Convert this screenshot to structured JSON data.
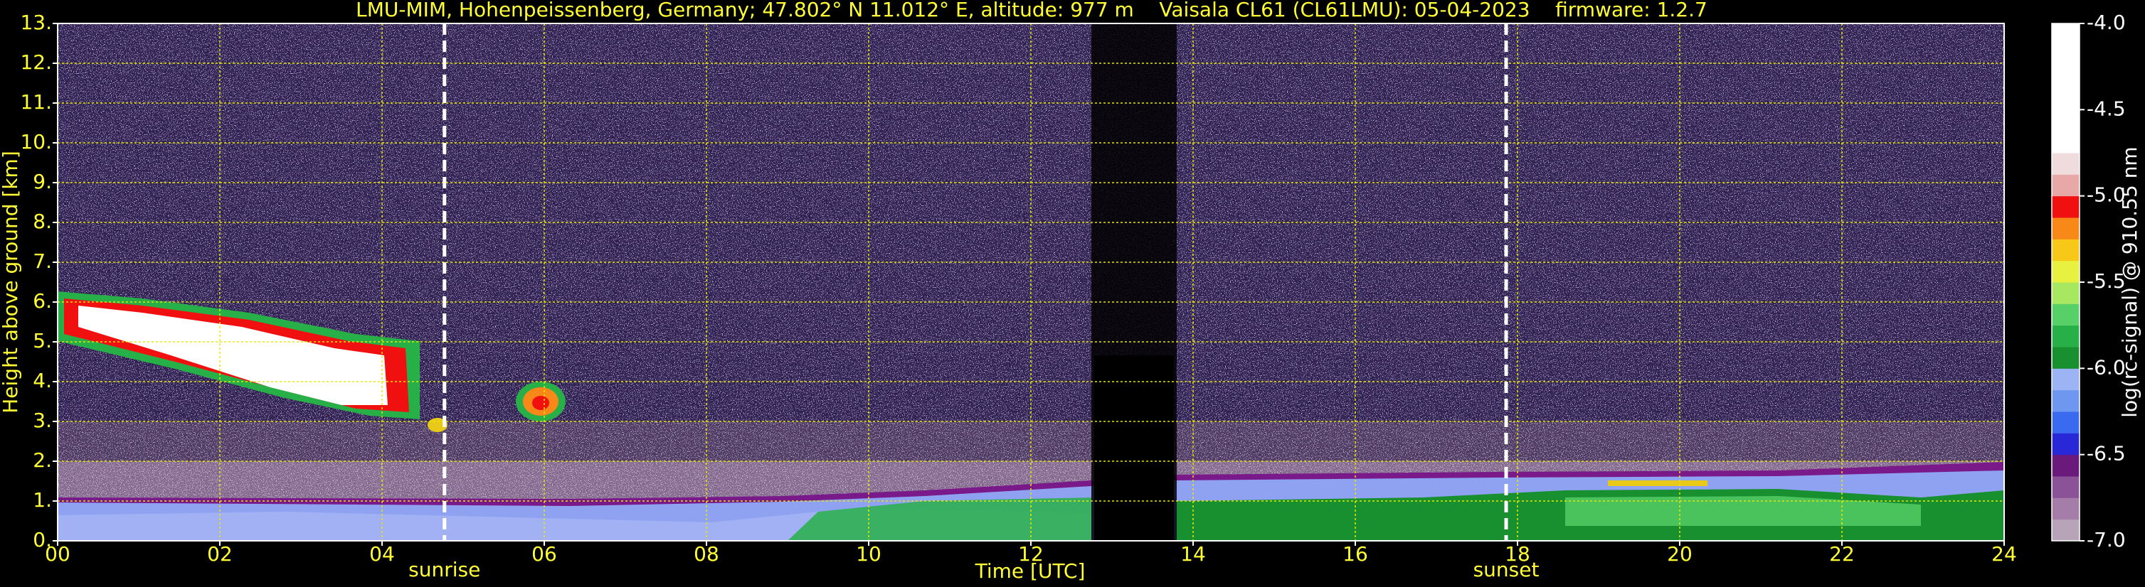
{
  "chart_data": {
    "type": "heatmap",
    "title": "LMU-MIM, Hohenpeissenberg, Germany; 47.802° N 11.012° E, altitude: 977 m    Vaisala CL61 (CL61LMU): 05-04-2023    firmware: 1.2.7",
    "x_label": "Time [UTC]",
    "y_label": "Height above ground [km]",
    "xlim": [
      0,
      24
    ],
    "xticks": [
      {
        "value": 0,
        "label": "00"
      },
      {
        "value": 2,
        "label": "02"
      },
      {
        "value": 4,
        "label": "04"
      },
      {
        "value": 6,
        "label": "06"
      },
      {
        "value": 8,
        "label": "08"
      },
      {
        "value": 10,
        "label": "10"
      },
      {
        "value": 12,
        "label": "12"
      },
      {
        "value": 14,
        "label": "14"
      },
      {
        "value": 16,
        "label": "16"
      },
      {
        "value": 18,
        "label": "18"
      },
      {
        "value": 20,
        "label": "20"
      },
      {
        "value": 22,
        "label": "22"
      },
      {
        "value": 24,
        "label": "24"
      }
    ],
    "ylim": [
      0,
      13
    ],
    "yticks": [
      {
        "value": 0,
        "label": "0."
      },
      {
        "value": 1,
        "label": "1."
      },
      {
        "value": 2,
        "label": "2."
      },
      {
        "value": 3,
        "label": "3."
      },
      {
        "value": 4,
        "label": "4."
      },
      {
        "value": 5,
        "label": "5."
      },
      {
        "value": 6,
        "label": "6."
      },
      {
        "value": 7,
        "label": "7."
      },
      {
        "value": 8,
        "label": "8."
      },
      {
        "value": 9,
        "label": "9."
      },
      {
        "value": 10,
        "label": "10."
      },
      {
        "value": 11,
        "label": "11."
      },
      {
        "value": 12,
        "label": "12."
      },
      {
        "value": 13,
        "label": "13."
      }
    ],
    "grid": true,
    "annotations": [
      {
        "text": "sunrise",
        "x": 4.77
      },
      {
        "text": "sunset",
        "x": 17.86
      }
    ],
    "colorbar": {
      "label": "log(rc-signal) @ 910.55 nm",
      "lim": [
        -7,
        -4
      ],
      "ticks": [
        {
          "value": -7,
          "label": "-7.0"
        },
        -6.5,
        {
          "value": -6,
          "label": "-6.0"
        },
        -5.5,
        {
          "value": -5,
          "label": "-5.0"
        },
        -4.5,
        {
          "value": -4,
          "label": "-4.0"
        }
      ],
      "colors": [
        "#b8a4b8",
        "#a47ea8",
        "#8c5298",
        "#6a1a7a",
        "#2828d8",
        "#3a6af0",
        "#6e98f0",
        "#9cb4f4",
        "#189030",
        "#28b048",
        "#58d068",
        "#a8e860",
        "#e8f040",
        "#f8c818",
        "#f88818",
        "#f01010",
        "#e8a8a8",
        "#f0dcdc",
        "#ffffff",
        "#ffffff",
        "#ffffff",
        "#ffffff",
        "#ffffff",
        "#ffffff"
      ]
    }
  }
}
